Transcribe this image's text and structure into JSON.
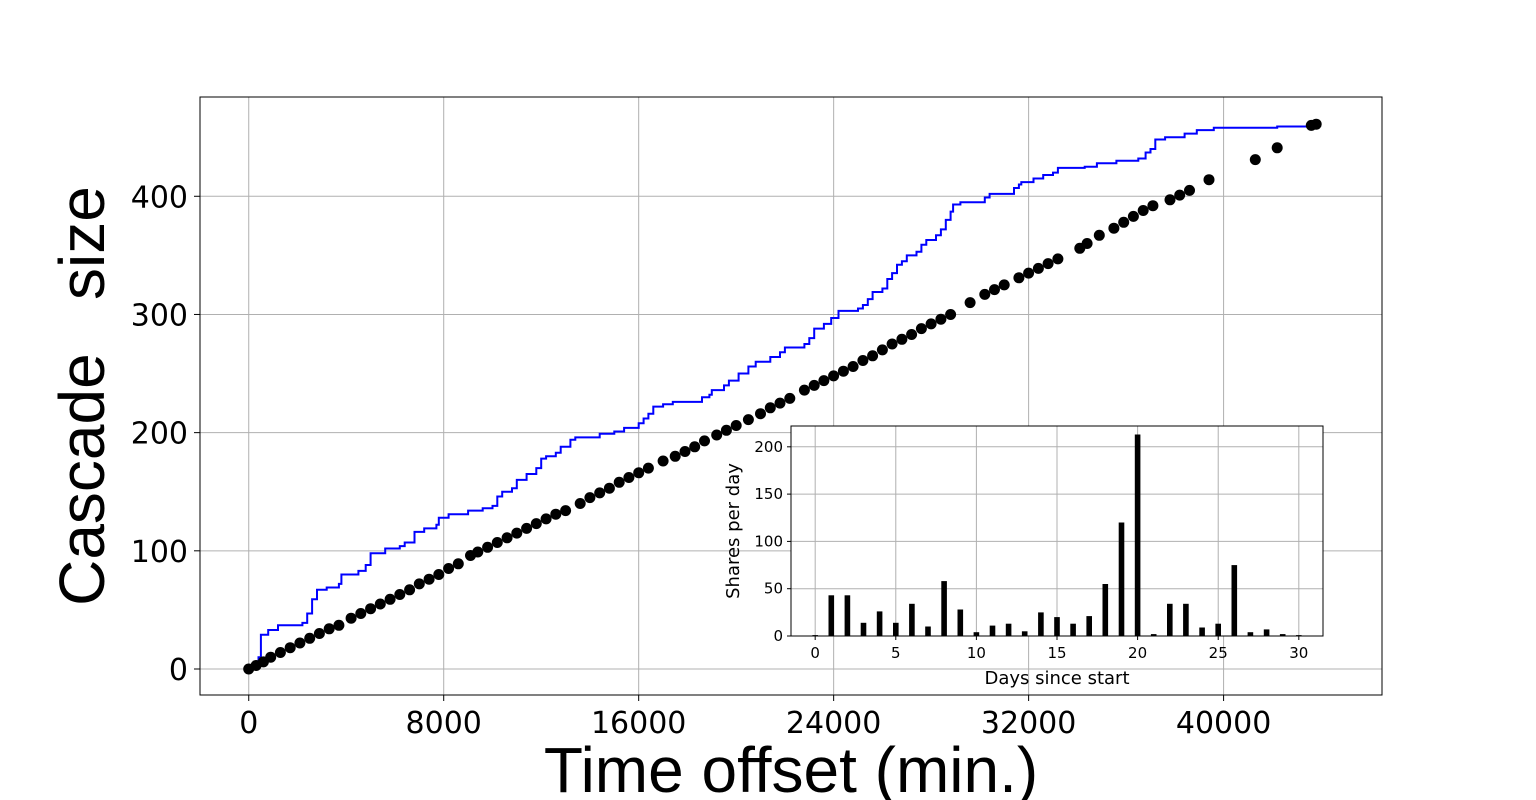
{
  "chart_data": [
    {
      "type": "scatter",
      "xlabel": "Time offset (min.)",
      "ylabel": "Cascade   size",
      "xlim": [
        -2000,
        46500
      ],
      "ylim": [
        -22,
        484
      ],
      "xticks": [
        0,
        8000,
        16000,
        24000,
        32000,
        40000
      ],
      "yticks": [
        0,
        100,
        200,
        300,
        400
      ],
      "grid": true,
      "colors": {
        "points": "#000000",
        "line": "#0000ff"
      },
      "series": [
        {
          "type": "scatter",
          "color": "#000000",
          "points": [
            [
              0,
              0
            ],
            [
              300,
              3
            ],
            [
              600,
              6
            ],
            [
              900,
              10
            ],
            [
              1300,
              14
            ],
            [
              1700,
              18
            ],
            [
              2100,
              22
            ],
            [
              2500,
              26
            ],
            [
              2900,
              30
            ],
            [
              3300,
              34
            ],
            [
              3700,
              37
            ],
            [
              4200,
              43
            ],
            [
              4600,
              47
            ],
            [
              5000,
              51
            ],
            [
              5400,
              55
            ],
            [
              5800,
              59
            ],
            [
              6200,
              63
            ],
            [
              6600,
              67
            ],
            [
              7000,
              72
            ],
            [
              7400,
              76
            ],
            [
              7800,
              80
            ],
            [
              8200,
              85
            ],
            [
              8600,
              89
            ],
            [
              9100,
              96
            ],
            [
              9400,
              99
            ],
            [
              9800,
              103
            ],
            [
              10200,
              107
            ],
            [
              10600,
              111
            ],
            [
              11000,
              115
            ],
            [
              11400,
              119
            ],
            [
              11800,
              123
            ],
            [
              12200,
              127
            ],
            [
              12600,
              131
            ],
            [
              13000,
              134
            ],
            [
              13600,
              140
            ],
            [
              14000,
              145
            ],
            [
              14400,
              149
            ],
            [
              14800,
              153
            ],
            [
              15200,
              158
            ],
            [
              15600,
              162
            ],
            [
              16000,
              166
            ],
            [
              16400,
              170
            ],
            [
              17000,
              176
            ],
            [
              17500,
              180
            ],
            [
              17900,
              184
            ],
            [
              18300,
              188
            ],
            [
              18700,
              193
            ],
            [
              19200,
              198
            ],
            [
              19600,
              202
            ],
            [
              20000,
              206
            ],
            [
              20500,
              211
            ],
            [
              21000,
              216
            ],
            [
              21400,
              221
            ],
            [
              21800,
              225
            ],
            [
              22200,
              229
            ],
            [
              22800,
              236
            ],
            [
              23200,
              240
            ],
            [
              23600,
              244
            ],
            [
              24000,
              248
            ],
            [
              24400,
              252
            ],
            [
              24800,
              256
            ],
            [
              25200,
              261
            ],
            [
              25600,
              265
            ],
            [
              26000,
              270
            ],
            [
              26400,
              275
            ],
            [
              26800,
              279
            ],
            [
              27200,
              283
            ],
            [
              27600,
              288
            ],
            [
              28000,
              292
            ],
            [
              28400,
              296
            ],
            [
              28800,
              300
            ],
            [
              29600,
              310
            ],
            [
              30200,
              317
            ],
            [
              30600,
              321
            ],
            [
              31000,
              325
            ],
            [
              31600,
              331
            ],
            [
              32000,
              335
            ],
            [
              32400,
              339
            ],
            [
              32800,
              343
            ],
            [
              33200,
              347
            ],
            [
              34100,
              356
            ],
            [
              34400,
              360
            ],
            [
              34900,
              367
            ],
            [
              35500,
              373
            ],
            [
              35900,
              378
            ],
            [
              36300,
              383
            ],
            [
              36700,
              388
            ],
            [
              37100,
              392
            ],
            [
              37800,
              397
            ],
            [
              38200,
              401
            ],
            [
              38600,
              405
            ],
            [
              39400,
              414
            ],
            [
              41300,
              431
            ],
            [
              42200,
              441
            ],
            [
              43600,
              460
            ],
            [
              43800,
              461
            ]
          ]
        },
        {
          "type": "step-line",
          "color": "#0000ff",
          "points": [
            [
              0,
              0
            ],
            [
              400,
              10
            ],
            [
              500,
              29
            ],
            [
              800,
              33
            ],
            [
              1200,
              37
            ],
            [
              2200,
              39
            ],
            [
              2400,
              47
            ],
            [
              2600,
              59
            ],
            [
              2800,
              67
            ],
            [
              3200,
              69
            ],
            [
              3700,
              72
            ],
            [
              3800,
              80
            ],
            [
              4500,
              83
            ],
            [
              4800,
              88
            ],
            [
              5000,
              98
            ],
            [
              5600,
              102
            ],
            [
              6200,
              104
            ],
            [
              6400,
              107
            ],
            [
              6800,
              116
            ],
            [
              7200,
              119
            ],
            [
              7700,
              122
            ],
            [
              7800,
              128
            ],
            [
              8200,
              131
            ],
            [
              9000,
              134
            ],
            [
              9600,
              136
            ],
            [
              10000,
              138
            ],
            [
              10200,
              146
            ],
            [
              10400,
              150
            ],
            [
              10800,
              153
            ],
            [
              11000,
              160
            ],
            [
              11400,
              165
            ],
            [
              11800,
              170
            ],
            [
              12000,
              178
            ],
            [
              12200,
              180
            ],
            [
              12600,
              183
            ],
            [
              12800,
              188
            ],
            [
              13200,
              194
            ],
            [
              13400,
              196
            ],
            [
              14400,
              199
            ],
            [
              15000,
              201
            ],
            [
              15400,
              204
            ],
            [
              16000,
              208
            ],
            [
              16200,
              212
            ],
            [
              16400,
              216
            ],
            [
              16600,
              222
            ],
            [
              17000,
              224
            ],
            [
              17400,
              226
            ],
            [
              18600,
              230
            ],
            [
              18900,
              232
            ],
            [
              19000,
              236
            ],
            [
              19500,
              240
            ],
            [
              19700,
              244
            ],
            [
              20100,
              250
            ],
            [
              20500,
              256
            ],
            [
              20800,
              260
            ],
            [
              21400,
              264
            ],
            [
              21800,
              268
            ],
            [
              22000,
              272
            ],
            [
              22800,
              275
            ],
            [
              23000,
              280
            ],
            [
              23200,
              288
            ],
            [
              23600,
              292
            ],
            [
              23900,
              297
            ],
            [
              24200,
              303
            ],
            [
              25000,
              305
            ],
            [
              25200,
              308
            ],
            [
              25400,
              313
            ],
            [
              25600,
              319
            ],
            [
              26000,
              322
            ],
            [
              26200,
              330
            ],
            [
              26400,
              335
            ],
            [
              26600,
              342
            ],
            [
              26800,
              345
            ],
            [
              27000,
              350
            ],
            [
              27400,
              353
            ],
            [
              27600,
              359
            ],
            [
              27800,
              363
            ],
            [
              28200,
              367
            ],
            [
              28400,
              372
            ],
            [
              28600,
              380
            ],
            [
              28800,
              387
            ],
            [
              28900,
              393
            ],
            [
              29200,
              395
            ],
            [
              30200,
              399
            ],
            [
              30400,
              402
            ],
            [
              31400,
              407
            ],
            [
              31600,
              410
            ],
            [
              31700,
              412
            ],
            [
              32200,
              415
            ],
            [
              32600,
              418
            ],
            [
              33000,
              420
            ],
            [
              33200,
              424
            ],
            [
              34300,
              425
            ],
            [
              34800,
              428
            ],
            [
              35600,
              430
            ],
            [
              36500,
              432
            ],
            [
              36800,
              437
            ],
            [
              37000,
              440
            ],
            [
              37200,
              448
            ],
            [
              37600,
              450
            ],
            [
              38400,
              453
            ],
            [
              38900,
              456
            ],
            [
              39600,
              458
            ],
            [
              42200,
              459
            ],
            [
              43800,
              460
            ]
          ]
        }
      ]
    },
    {
      "type": "bar",
      "xlabel": "Days since start",
      "ylabel": "Shares per day",
      "xlim": [
        -1.5,
        31.5
      ],
      "ylim": [
        0,
        222
      ],
      "xticks": [
        0,
        5,
        10,
        15,
        20,
        25,
        30
      ],
      "yticks": [
        0,
        50,
        100,
        150,
        200
      ],
      "grid": true,
      "color": "#000000",
      "x": [
        0,
        1,
        2,
        3,
        4,
        5,
        6,
        7,
        8,
        9,
        10,
        11,
        12,
        13,
        14,
        15,
        16,
        17,
        18,
        19,
        20,
        21,
        22,
        23,
        24,
        25,
        26,
        27,
        28,
        29,
        30
      ],
      "values": [
        1,
        43,
        43,
        14,
        26,
        14,
        34,
        10,
        58,
        28,
        4,
        11,
        13,
        5,
        25,
        20,
        13,
        21,
        55,
        120,
        213,
        2,
        34,
        34,
        9,
        13,
        75,
        4,
        7,
        2,
        1
      ]
    }
  ]
}
